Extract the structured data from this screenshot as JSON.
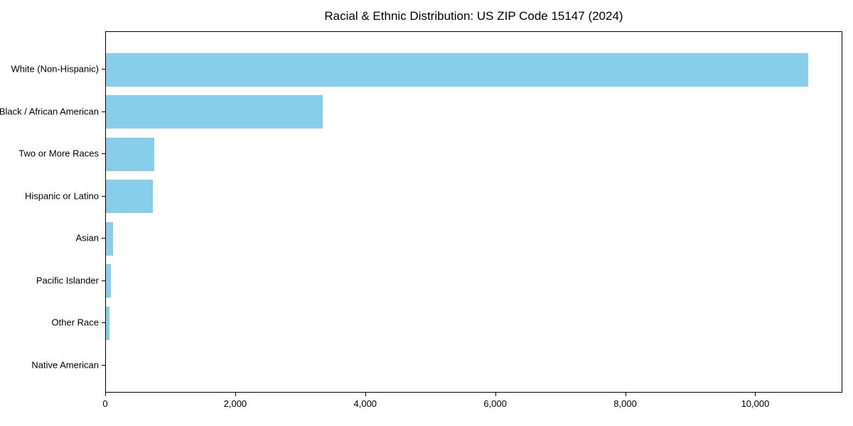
{
  "title": "Racial & Ethnic Distribution: US ZIP Code 15147 (2024)",
  "chart_data": {
    "type": "bar",
    "orientation": "horizontal",
    "title": "Racial & Ethnic Distribution: US ZIP Code 15147 (2024)",
    "categories": [
      "White (Non-Hispanic)",
      "Black / African American",
      "Two or More Races",
      "Hispanic or Latino",
      "Asian",
      "Pacific Islander",
      "Other Race",
      "Native American"
    ],
    "values": [
      10800,
      3330,
      740,
      720,
      110,
      75,
      50,
      0
    ],
    "xlabel": "",
    "ylabel": "",
    "xlim": [
      0,
      11340
    ],
    "xticks": [
      0,
      2000,
      4000,
      6000,
      8000,
      10000
    ],
    "xtick_labels": [
      "0",
      "2,000",
      "4,000",
      "6,000",
      "8,000",
      "10,000"
    ],
    "bar_color": "#87CEEB",
    "axis_color": "#000000",
    "background_color": "#FFFFFF",
    "grid": false,
    "legend": null
  }
}
